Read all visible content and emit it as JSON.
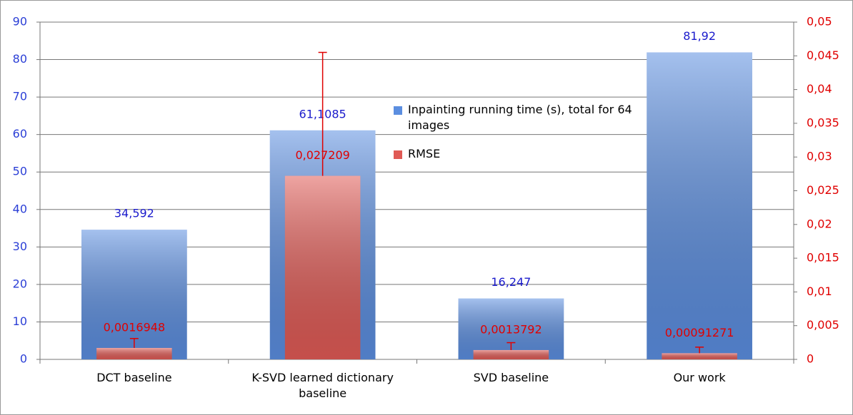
{
  "chart_data": {
    "type": "bar",
    "categories": [
      "DCT baseline",
      "K-SVD learned dictionary baseline",
      "SVD baseline",
      "Our work"
    ],
    "series": [
      {
        "name": "Inpainting running time (s), total for 64 images",
        "color": "#5b8ee0",
        "values": [
          34.592,
          61.1085,
          16.247,
          81.92
        ],
        "value_labels": [
          "34,592",
          "61,1085",
          "16,247",
          "81,92"
        ]
      },
      {
        "name": "RMSE",
        "color": "#e05a55",
        "axis": "y2",
        "values": [
          0.0016948,
          0.027209,
          0.0013792,
          0.00091271
        ],
        "value_labels": [
          "0,0016948",
          "0,027209",
          "0,0013792",
          "0,00091271"
        ],
        "errors": [
          0.0014,
          0.0183,
          0.0011,
          0.0009
        ]
      }
    ],
    "ylim": [
      0,
      90
    ],
    "yticks": [
      0,
      10,
      20,
      30,
      40,
      50,
      60,
      70,
      80,
      90
    ],
    "y2lim": [
      0,
      0.05
    ],
    "y2ticks": [
      0,
      {
        "value": 0.005,
        "label": "0,005"
      },
      {
        "value": 0.01,
        "label": "0,01"
      },
      {
        "value": 0.015,
        "label": "0,015"
      },
      {
        "value": 0.02,
        "label": "0,02"
      },
      {
        "value": 0.025,
        "label": "0,025"
      },
      {
        "value": 0.03,
        "label": "0,03"
      },
      {
        "value": 0.035,
        "label": "0,035"
      },
      {
        "value": 0.04,
        "label": "0,04"
      },
      {
        "value": 0.045,
        "label": "0,045"
      },
      {
        "value": 0.05,
        "label": "0,05"
      }
    ],
    "grid": true,
    "legend": "center"
  }
}
